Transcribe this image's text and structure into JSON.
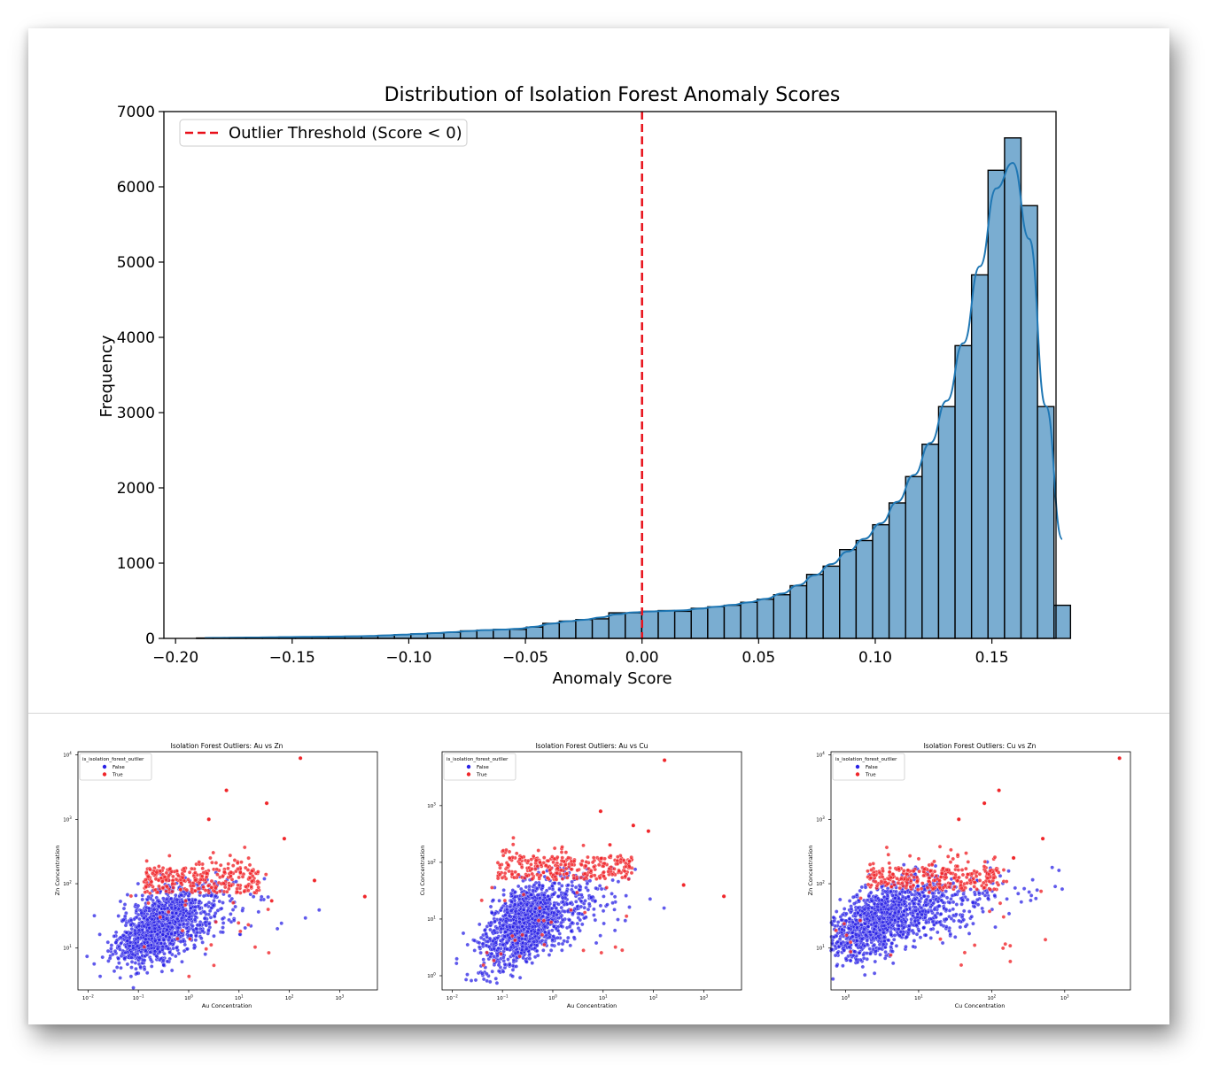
{
  "chart_data": [
    {
      "type": "bar",
      "title": "Distribution of Isolation Forest Anomaly Scores",
      "xlabel": "Anomaly Score",
      "ylabel": "Frequency",
      "xlim": [
        -0.205,
        0.1775
      ],
      "ylim": [
        0,
        7000
      ],
      "xticks": [
        -0.2,
        -0.15,
        -0.1,
        -0.05,
        0.0,
        0.05,
        0.1,
        0.15
      ],
      "xtick_labels": [
        "−0.20",
        "−0.15",
        "−0.10",
        "−0.05",
        "0.00",
        "0.05",
        "0.10",
        "0.15"
      ],
      "yticks": [
        0,
        1000,
        2000,
        3000,
        4000,
        5000,
        6000,
        7000
      ],
      "ytick_labels": [
        "0",
        "1000",
        "2000",
        "3000",
        "4000",
        "5000",
        "6000",
        "7000"
      ],
      "bin_start": -0.191,
      "bin_width": 0.00707,
      "values": [
        5,
        8,
        10,
        12,
        15,
        18,
        20,
        22,
        25,
        28,
        30,
        40,
        50,
        60,
        70,
        80,
        100,
        110,
        120,
        120,
        150,
        200,
        230,
        250,
        260,
        340,
        340,
        360,
        370,
        360,
        400,
        420,
        440,
        480,
        520,
        580,
        700,
        850,
        960,
        1180,
        1300,
        1510,
        1800,
        2150,
        2580,
        3080,
        3890,
        4830,
        6220,
        6650,
        5750,
        3080,
        440
      ],
      "bar_color": "#7aadd1",
      "kde_color": "#1f77b4",
      "threshold": {
        "x": 0.0,
        "color": "#e8101a",
        "label": "Outlier Threshold (Score < 0)"
      },
      "legend_position": "upper-left"
    },
    {
      "type": "scatter",
      "title": "Isolation Forest Outliers: Au vs Zn",
      "xlabel": "Au Concentration",
      "ylabel": "Zn Concentration",
      "xscale": "log",
      "yscale": "log",
      "xlim_log10": [
        -2.2,
        3.75
      ],
      "ylim_log10": [
        0.35,
        4.05
      ],
      "xticks_log10": [
        -2,
        -1,
        0,
        1,
        2,
        3
      ],
      "yticks_log10": [
        1,
        2,
        3,
        4
      ],
      "legend_title": "is_isolation_forest_outlier",
      "legend": [
        {
          "label": "False",
          "color": "#2a22e6"
        },
        {
          "label": "True",
          "color": "#f0262a"
        }
      ],
      "cloud_false": {
        "cx": -0.55,
        "cy": 1.35,
        "sx": 0.42,
        "sy": 0.33,
        "n": 1400
      },
      "cloud_true": {
        "xmin": -0.9,
        "xmax": 1.4,
        "ymin": 1.85,
        "ymax": 2.25,
        "n": 300
      },
      "extreme_points": [
        [
          2.22,
          3.95
        ],
        [
          0.75,
          3.45
        ],
        [
          1.55,
          3.25
        ],
        [
          0.4,
          3.0
        ],
        [
          1.9,
          2.7
        ],
        [
          3.5,
          1.8
        ],
        [
          2.5,
          2.05
        ]
      ]
    },
    {
      "type": "scatter",
      "title": "Isolation Forest Outliers: Au vs Cu",
      "xlabel": "Au Concentration",
      "ylabel": "Cu Concentration",
      "xscale": "log",
      "yscale": "log",
      "xlim_log10": [
        -2.2,
        3.75
      ],
      "ylim_log10": [
        -0.25,
        3.95
      ],
      "xticks_log10": [
        -2,
        -1,
        0,
        1,
        2,
        3
      ],
      "yticks_log10": [
        0,
        1,
        2,
        3
      ],
      "legend_title": "is_isolation_forest_outlier",
      "legend": [
        {
          "label": "False",
          "color": "#2a22e6"
        },
        {
          "label": "True",
          "color": "#f0262a"
        }
      ],
      "cloud_false": {
        "cx": -0.5,
        "cy": 0.95,
        "sx": 0.42,
        "sy": 0.42,
        "n": 1400
      },
      "cloud_true": {
        "xmin": -1.1,
        "xmax": 1.6,
        "ymin": 1.7,
        "ymax": 2.1,
        "n": 300
      },
      "extreme_points": [
        [
          2.22,
          3.8
        ],
        [
          1.9,
          2.55
        ],
        [
          1.6,
          2.65
        ],
        [
          0.95,
          2.9
        ],
        [
          2.6,
          1.6
        ],
        [
          3.4,
          1.4
        ]
      ]
    },
    {
      "type": "scatter",
      "title": "Isolation Forest Outliers: Cu vs Zn",
      "xlabel": "Cu Concentration",
      "ylabel": "Zn Concentration",
      "xscale": "log",
      "yscale": "log",
      "xlim_log10": [
        -0.2,
        3.9
      ],
      "ylim_log10": [
        0.35,
        4.05
      ],
      "xticks_log10": [
        0,
        1,
        2,
        3
      ],
      "yticks_log10": [
        1,
        2,
        3,
        4
      ],
      "legend_title": "is_isolation_forest_outlier",
      "legend": [
        {
          "label": "False",
          "color": "#2a22e6"
        },
        {
          "label": "True",
          "color": "#f0262a"
        }
      ],
      "cloud_false": {
        "cx": 0.55,
        "cy": 1.45,
        "sx": 0.4,
        "sy": 0.33,
        "n": 1400
      },
      "cloud_true": {
        "xmin": 0.3,
        "xmax": 2.1,
        "ymin": 1.9,
        "ymax": 2.25,
        "n": 300
      },
      "extreme_points": [
        [
          3.75,
          3.95
        ],
        [
          2.1,
          3.45
        ],
        [
          1.9,
          3.25
        ],
        [
          1.55,
          3.0
        ],
        [
          2.7,
          2.7
        ],
        [
          2.3,
          2.4
        ]
      ]
    }
  ]
}
